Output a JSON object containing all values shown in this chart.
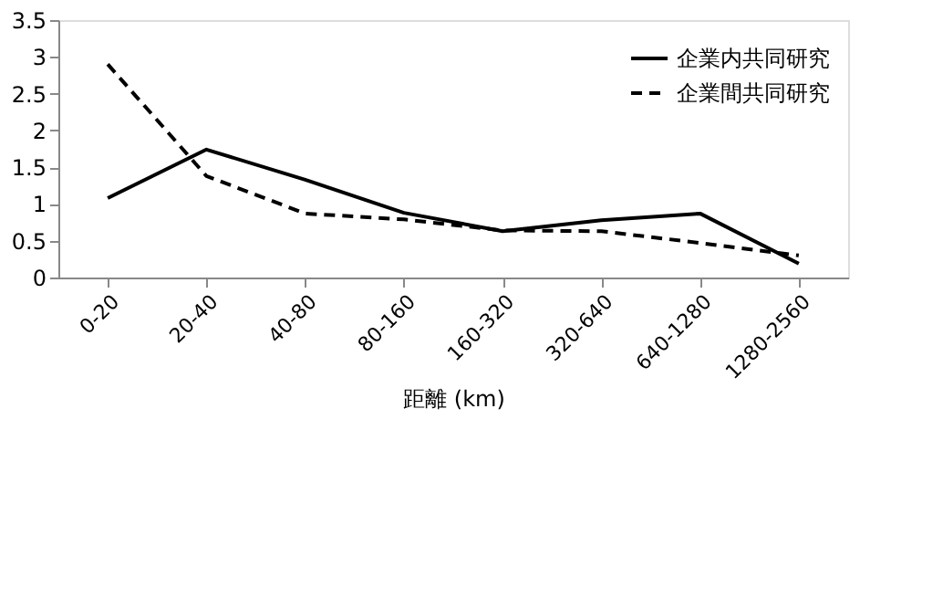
{
  "chart_data": {
    "type": "line",
    "xlabel": "距離 (km)",
    "categories": [
      "0-20",
      "20-40",
      "40-80",
      "80-160",
      "160-320",
      "320-640",
      "640-1280",
      "1280-2560"
    ],
    "series": [
      {
        "name": "企業内共同研究",
        "color": "#000000",
        "line_style": "solid",
        "values": [
          1.08,
          1.74,
          1.33,
          0.88,
          0.63,
          0.78,
          0.87,
          0.19
        ]
      },
      {
        "name": "企業間共同研究",
        "color": "#000000",
        "line_style": "dashed",
        "values": [
          2.9,
          1.38,
          0.87,
          0.79,
          0.64,
          0.63,
          0.47,
          0.3
        ]
      }
    ],
    "ylim": [
      0,
      3.5
    ],
    "yticks": [
      0,
      0.5,
      1,
      1.5,
      2,
      2.5,
      3,
      3.5
    ],
    "grid": false,
    "legend": "top right",
    "marker": "none"
  }
}
